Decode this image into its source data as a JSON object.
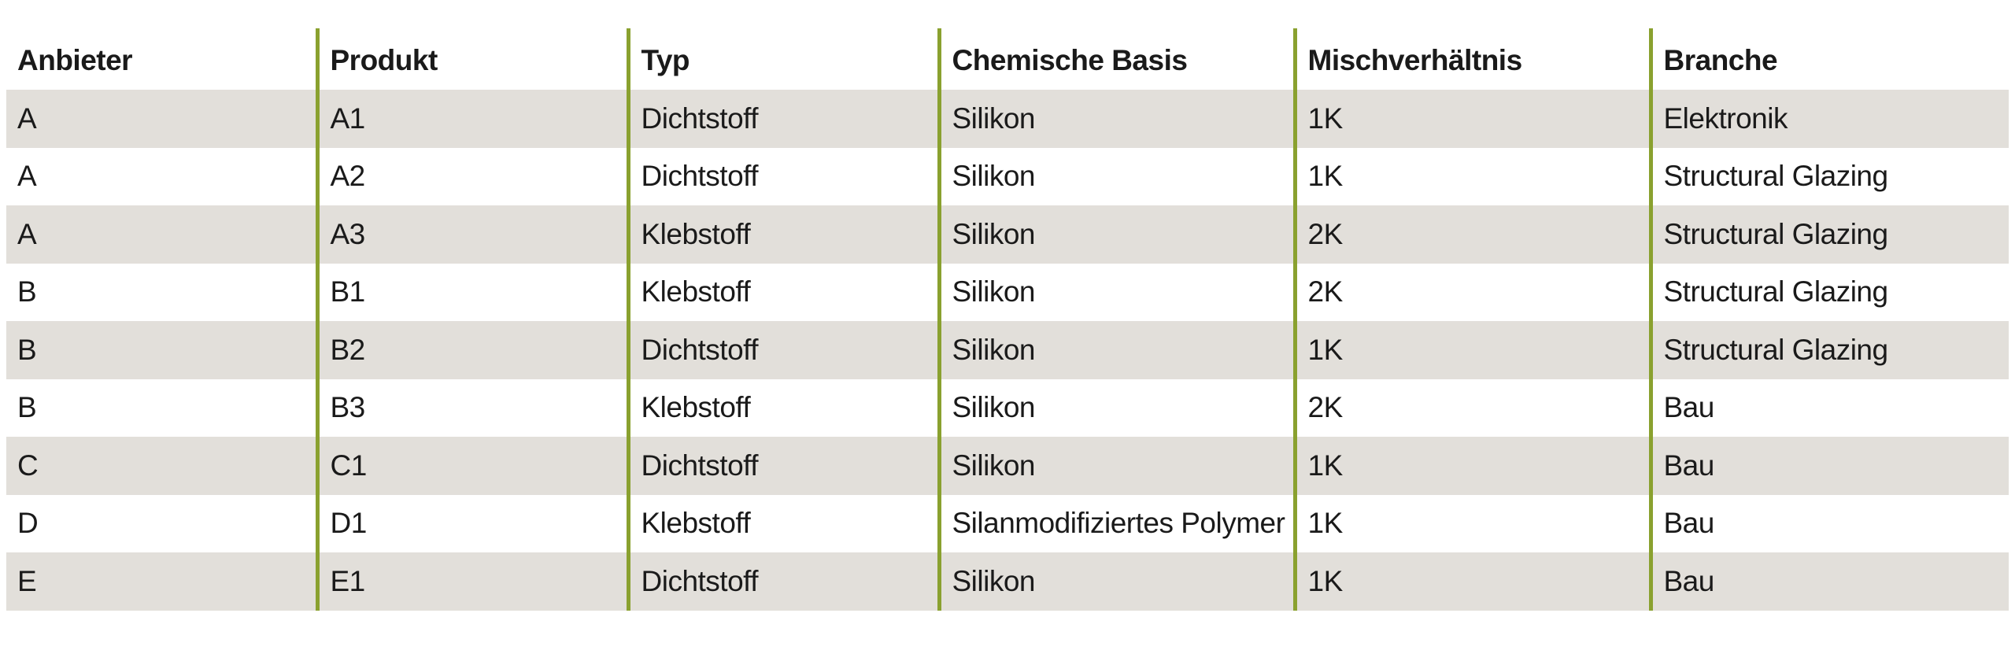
{
  "table": {
    "headers": [
      "Anbieter",
      "Produkt",
      "Typ",
      "Chemische Basis",
      "Mischverhältnis",
      "Branche"
    ],
    "rows": [
      [
        "A",
        "A1",
        "Dichtstoff",
        "Silikon",
        "1K",
        "Elektronik"
      ],
      [
        "A",
        "A2",
        "Dichtstoff",
        "Silikon",
        "1K",
        "Structural Glazing"
      ],
      [
        "A",
        "A3",
        "Klebstoff",
        "Silikon",
        "2K",
        "Structural Glazing"
      ],
      [
        "B",
        "B1",
        "Klebstoff",
        "Silikon",
        "2K",
        "Structural Glazing"
      ],
      [
        "B",
        "B2",
        "Dichtstoff",
        "Silikon",
        "1K",
        "Structural Glazing"
      ],
      [
        "B",
        "B3",
        "Klebstoff",
        "Silikon",
        "2K",
        "Bau"
      ],
      [
        "C",
        "C1",
        "Dichtstoff",
        "Silikon",
        "1K",
        "Bau"
      ],
      [
        "D",
        "D1",
        "Klebstoff",
        "Silanmodifiziertes Polymer",
        "1K",
        "Bau"
      ],
      [
        "E",
        "E1",
        "Dichtstoff",
        "Silikon",
        "1K",
        "Bau"
      ]
    ]
  },
  "colors": {
    "divider": "#8aa12f",
    "row_shade": "#e2dfda",
    "text": "#1a1a1a"
  }
}
